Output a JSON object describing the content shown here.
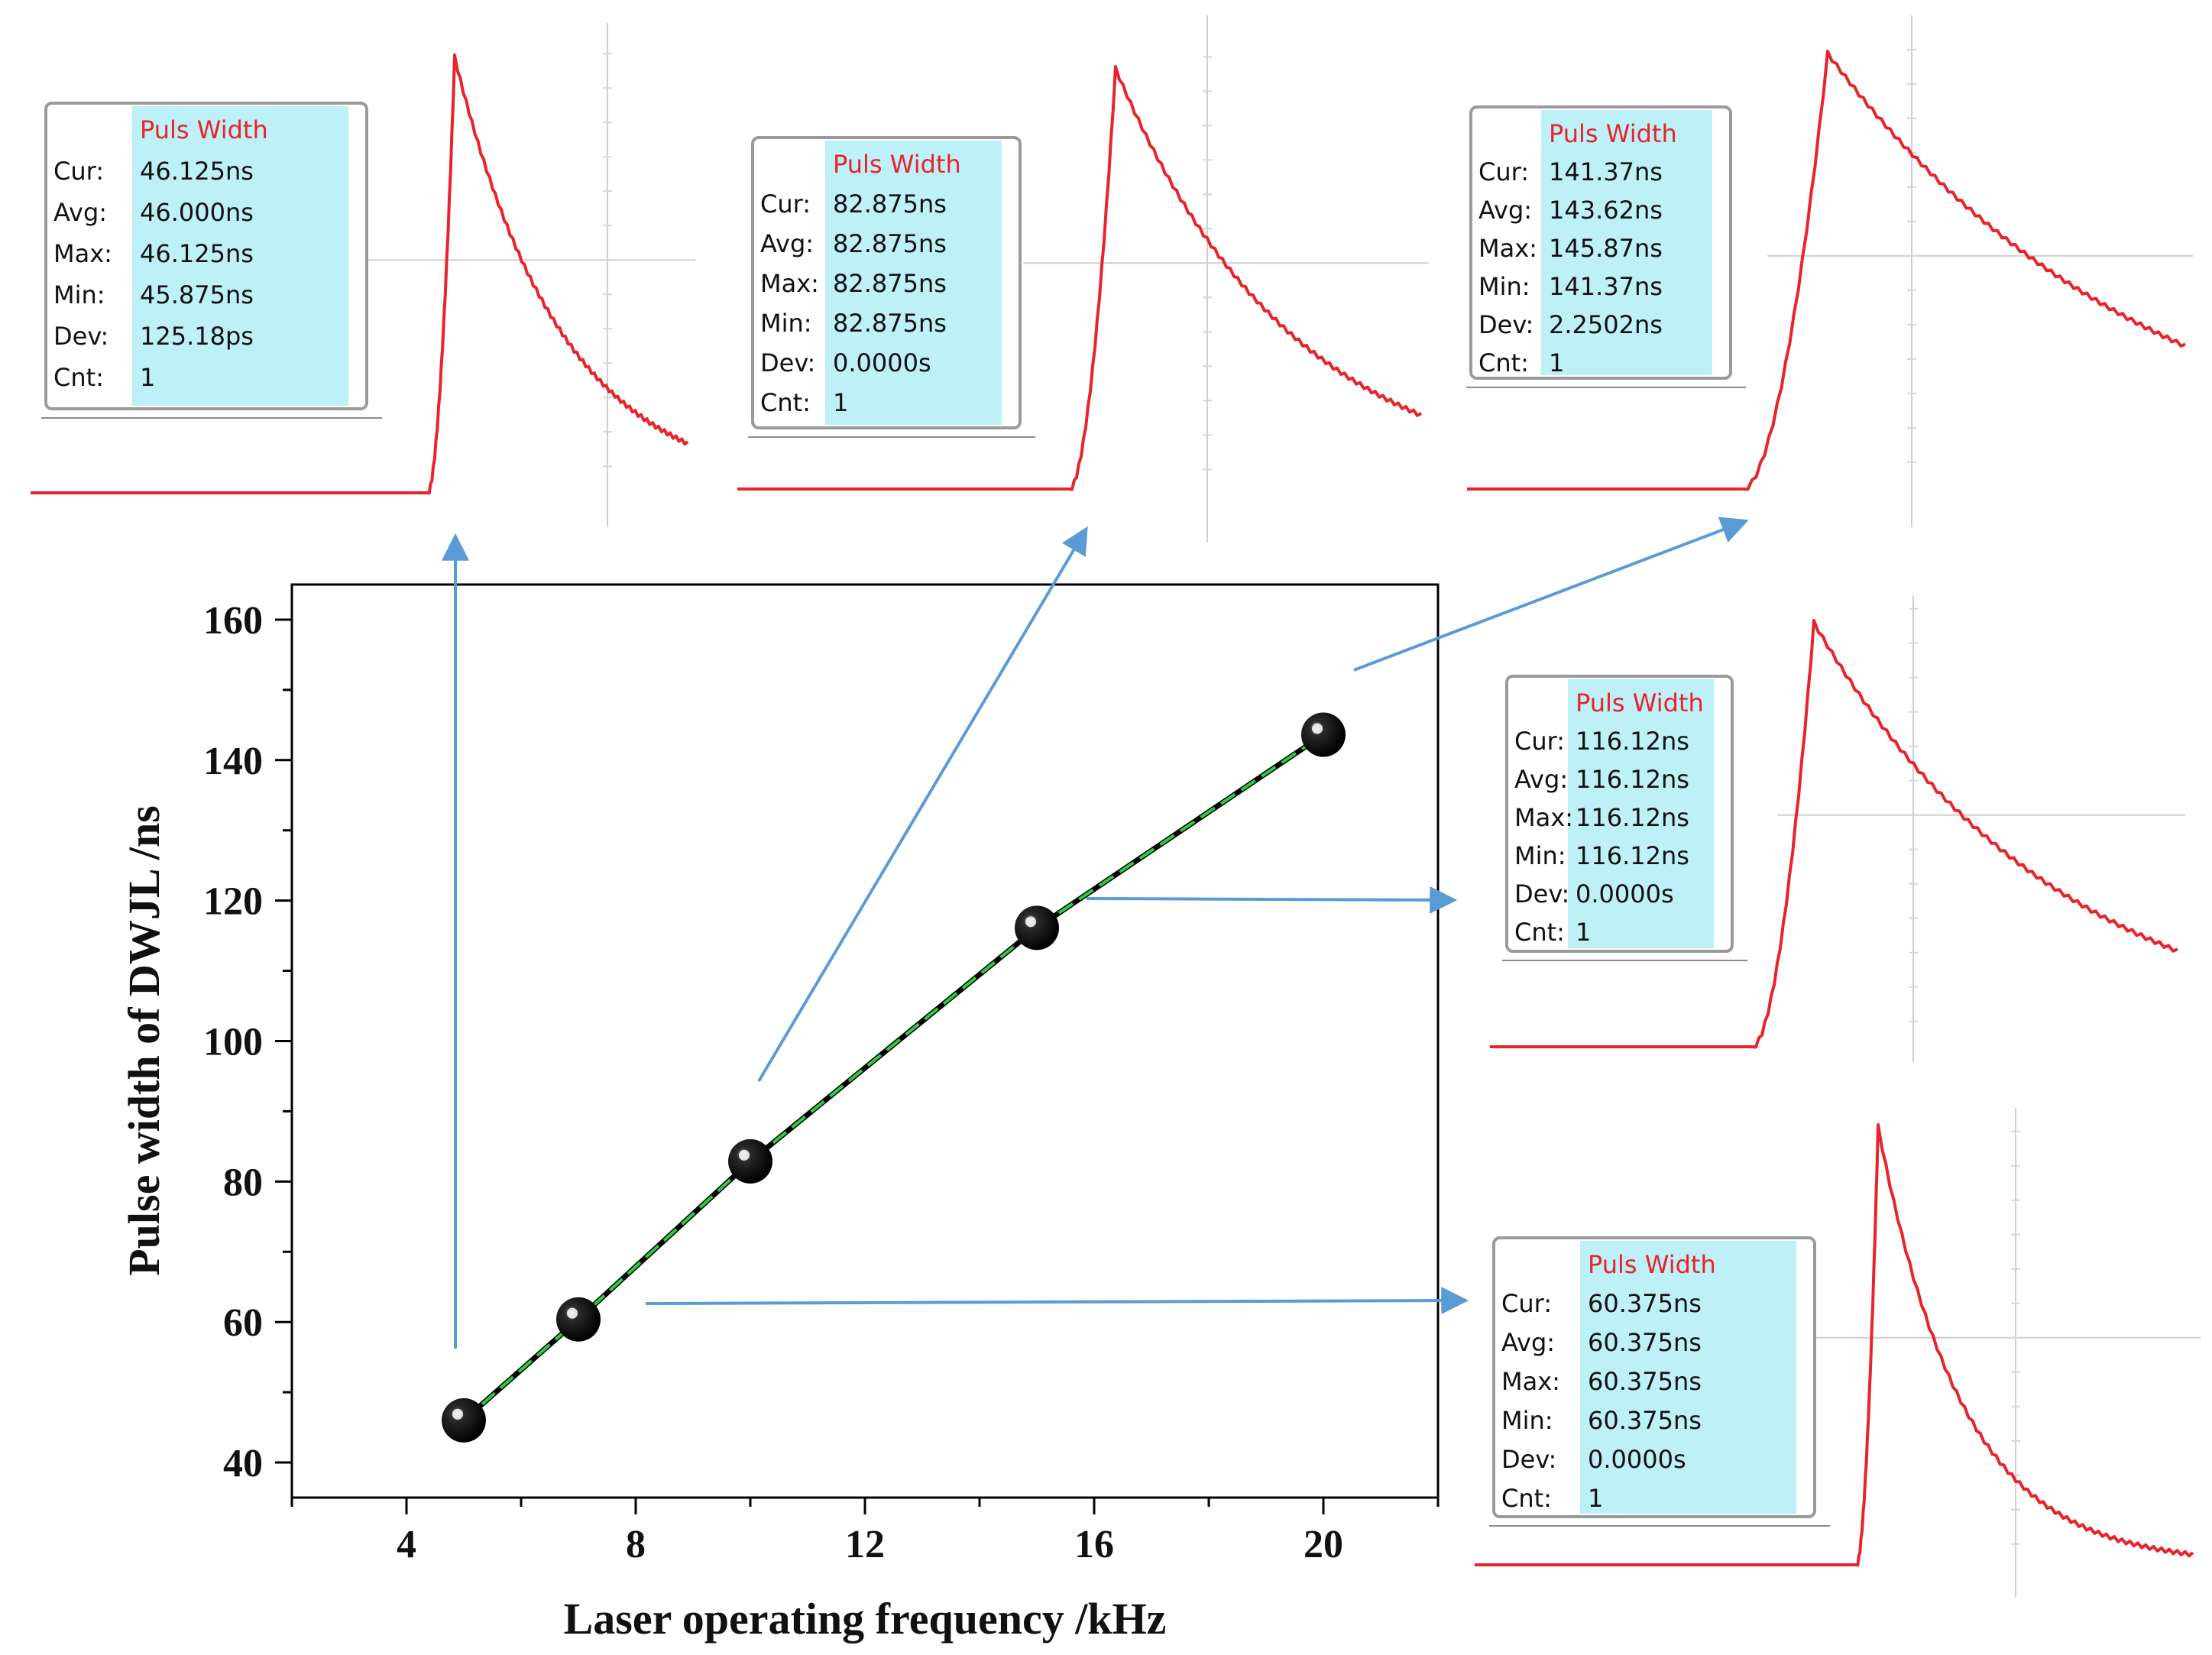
{
  "chart_data": {
    "type": "scatter",
    "title": "",
    "xlabel": "Laser operating frequency  /kHz",
    "ylabel": "Pulse width of DWJL /ns",
    "xlim": [
      2,
      22
    ],
    "ylim": [
      35,
      165
    ],
    "xticks": [
      4,
      8,
      12,
      16,
      20
    ],
    "yticks": [
      40,
      60,
      80,
      100,
      120,
      140,
      160
    ],
    "xtick_labels": [
      "4",
      "8",
      "12",
      "16",
      "20"
    ],
    "ytick_labels": [
      "40",
      "60",
      "80",
      "100",
      "120",
      "140",
      "160"
    ],
    "grid": false,
    "series": [
      {
        "name": "Pulse width",
        "x": [
          5,
          7,
          10,
          15,
          20
        ],
        "y": [
          46.0,
          60.375,
          82.875,
          116.12,
          143.62
        ]
      }
    ]
  },
  "scope_panels": [
    {
      "id": "5khz",
      "title": "Puls Width",
      "rows": [
        {
          "label": "Cur:",
          "value": "46.125ns"
        },
        {
          "label": "Avg:",
          "value": "46.000ns"
        },
        {
          "label": "Max:",
          "value": "46.125ns"
        },
        {
          "label": "Min:",
          "value": "45.875ns"
        },
        {
          "label": "Dev:",
          "value": "125.18ps"
        },
        {
          "label": "Cnt:",
          "value": "1"
        }
      ]
    },
    {
      "id": "10khz",
      "title": "Puls Width",
      "rows": [
        {
          "label": "Cur:",
          "value": "82.875ns"
        },
        {
          "label": "Avg:",
          "value": "82.875ns"
        },
        {
          "label": "Max:",
          "value": "82.875ns"
        },
        {
          "label": "Min:",
          "value": "82.875ns"
        },
        {
          "label": "Dev:",
          "value": "0.0000s"
        },
        {
          "label": "Cnt:",
          "value": "1"
        }
      ]
    },
    {
      "id": "20khz",
      "title": "Puls Width",
      "rows": [
        {
          "label": "Cur:",
          "value": "141.37ns"
        },
        {
          "label": "Avg:",
          "value": "143.62ns"
        },
        {
          "label": "Max:",
          "value": "145.87ns"
        },
        {
          "label": "Min:",
          "value": "141.37ns"
        },
        {
          "label": "Dev:",
          "value": "2.2502ns"
        },
        {
          "label": "Cnt:",
          "value": "1"
        }
      ]
    },
    {
      "id": "15khz",
      "title": "Puls Width",
      "rows": [
        {
          "label": "Cur:",
          "value": "116.12ns"
        },
        {
          "label": "Avg:",
          "value": "116.12ns"
        },
        {
          "label": "Max:",
          "value": "116.12ns"
        },
        {
          "label": "Min:",
          "value": "116.12ns"
        },
        {
          "label": "Dev:",
          "value": "0.0000s"
        },
        {
          "label": "Cnt:",
          "value": "1"
        }
      ]
    },
    {
      "id": "7khz",
      "title": "Puls Width",
      "rows": [
        {
          "label": "Cur:",
          "value": "60.375ns"
        },
        {
          "label": "Avg:",
          "value": "60.375ns"
        },
        {
          "label": "Max:",
          "value": "60.375ns"
        },
        {
          "label": "Min:",
          "value": "60.375ns"
        },
        {
          "label": "Dev:",
          "value": "0.0000s"
        },
        {
          "label": "Cnt:",
          "value": "1"
        }
      ]
    }
  ],
  "colors": {
    "trace": "#e8232a",
    "arrow": "#5b9bd5",
    "fit_line": "#2ecc40",
    "panel_bg": "#bdf0f7",
    "axis": "#000000"
  }
}
